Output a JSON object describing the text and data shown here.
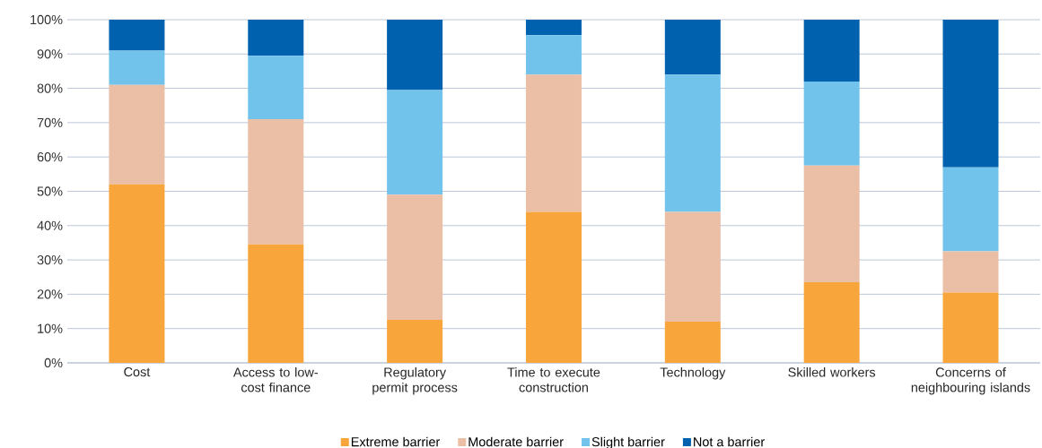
{
  "chart_data": {
    "type": "bar",
    "stacked": true,
    "categories": [
      "Cost",
      "Access to low-cost finance",
      "Regulatory permit process",
      "Time to execute construction",
      "Technology",
      "Skilled workers",
      "Concerns of neighbouring islands"
    ],
    "series": [
      {
        "name": "Extreme barrier",
        "color": "#f8a53b",
        "values": [
          52,
          34.5,
          12.5,
          44,
          12,
          23.5,
          20.5
        ]
      },
      {
        "name": "Moderate barrier",
        "color": "#ebbea6",
        "values": [
          29,
          36.5,
          36.5,
          40,
          32,
          34,
          12
        ]
      },
      {
        "name": "Slight barrier",
        "color": "#72c3ec",
        "values": [
          10,
          18.5,
          30.5,
          11.5,
          40,
          24.5,
          24.5
        ]
      },
      {
        "name": "Not a barrier",
        "color": "#0062ae",
        "values": [
          9,
          10.5,
          20.5,
          4.5,
          16,
          18,
          43
        ]
      }
    ],
    "ylim": [
      0,
      100
    ],
    "yticks": [
      {
        "value": 0,
        "label": "0%"
      },
      {
        "value": 10,
        "label": "10%"
      },
      {
        "value": 20,
        "label": "20%"
      },
      {
        "value": 30,
        "label": "30%"
      },
      {
        "value": 40,
        "label": "40%"
      },
      {
        "value": 50,
        "label": "50%"
      },
      {
        "value": 60,
        "label": "60%"
      },
      {
        "value": 70,
        "label": "70%"
      },
      {
        "value": 80,
        "label": "80%"
      },
      {
        "value": 90,
        "label": "90%"
      },
      {
        "value": 100,
        "label": "100%"
      }
    ],
    "grid": "y",
    "legend": "bottom"
  }
}
